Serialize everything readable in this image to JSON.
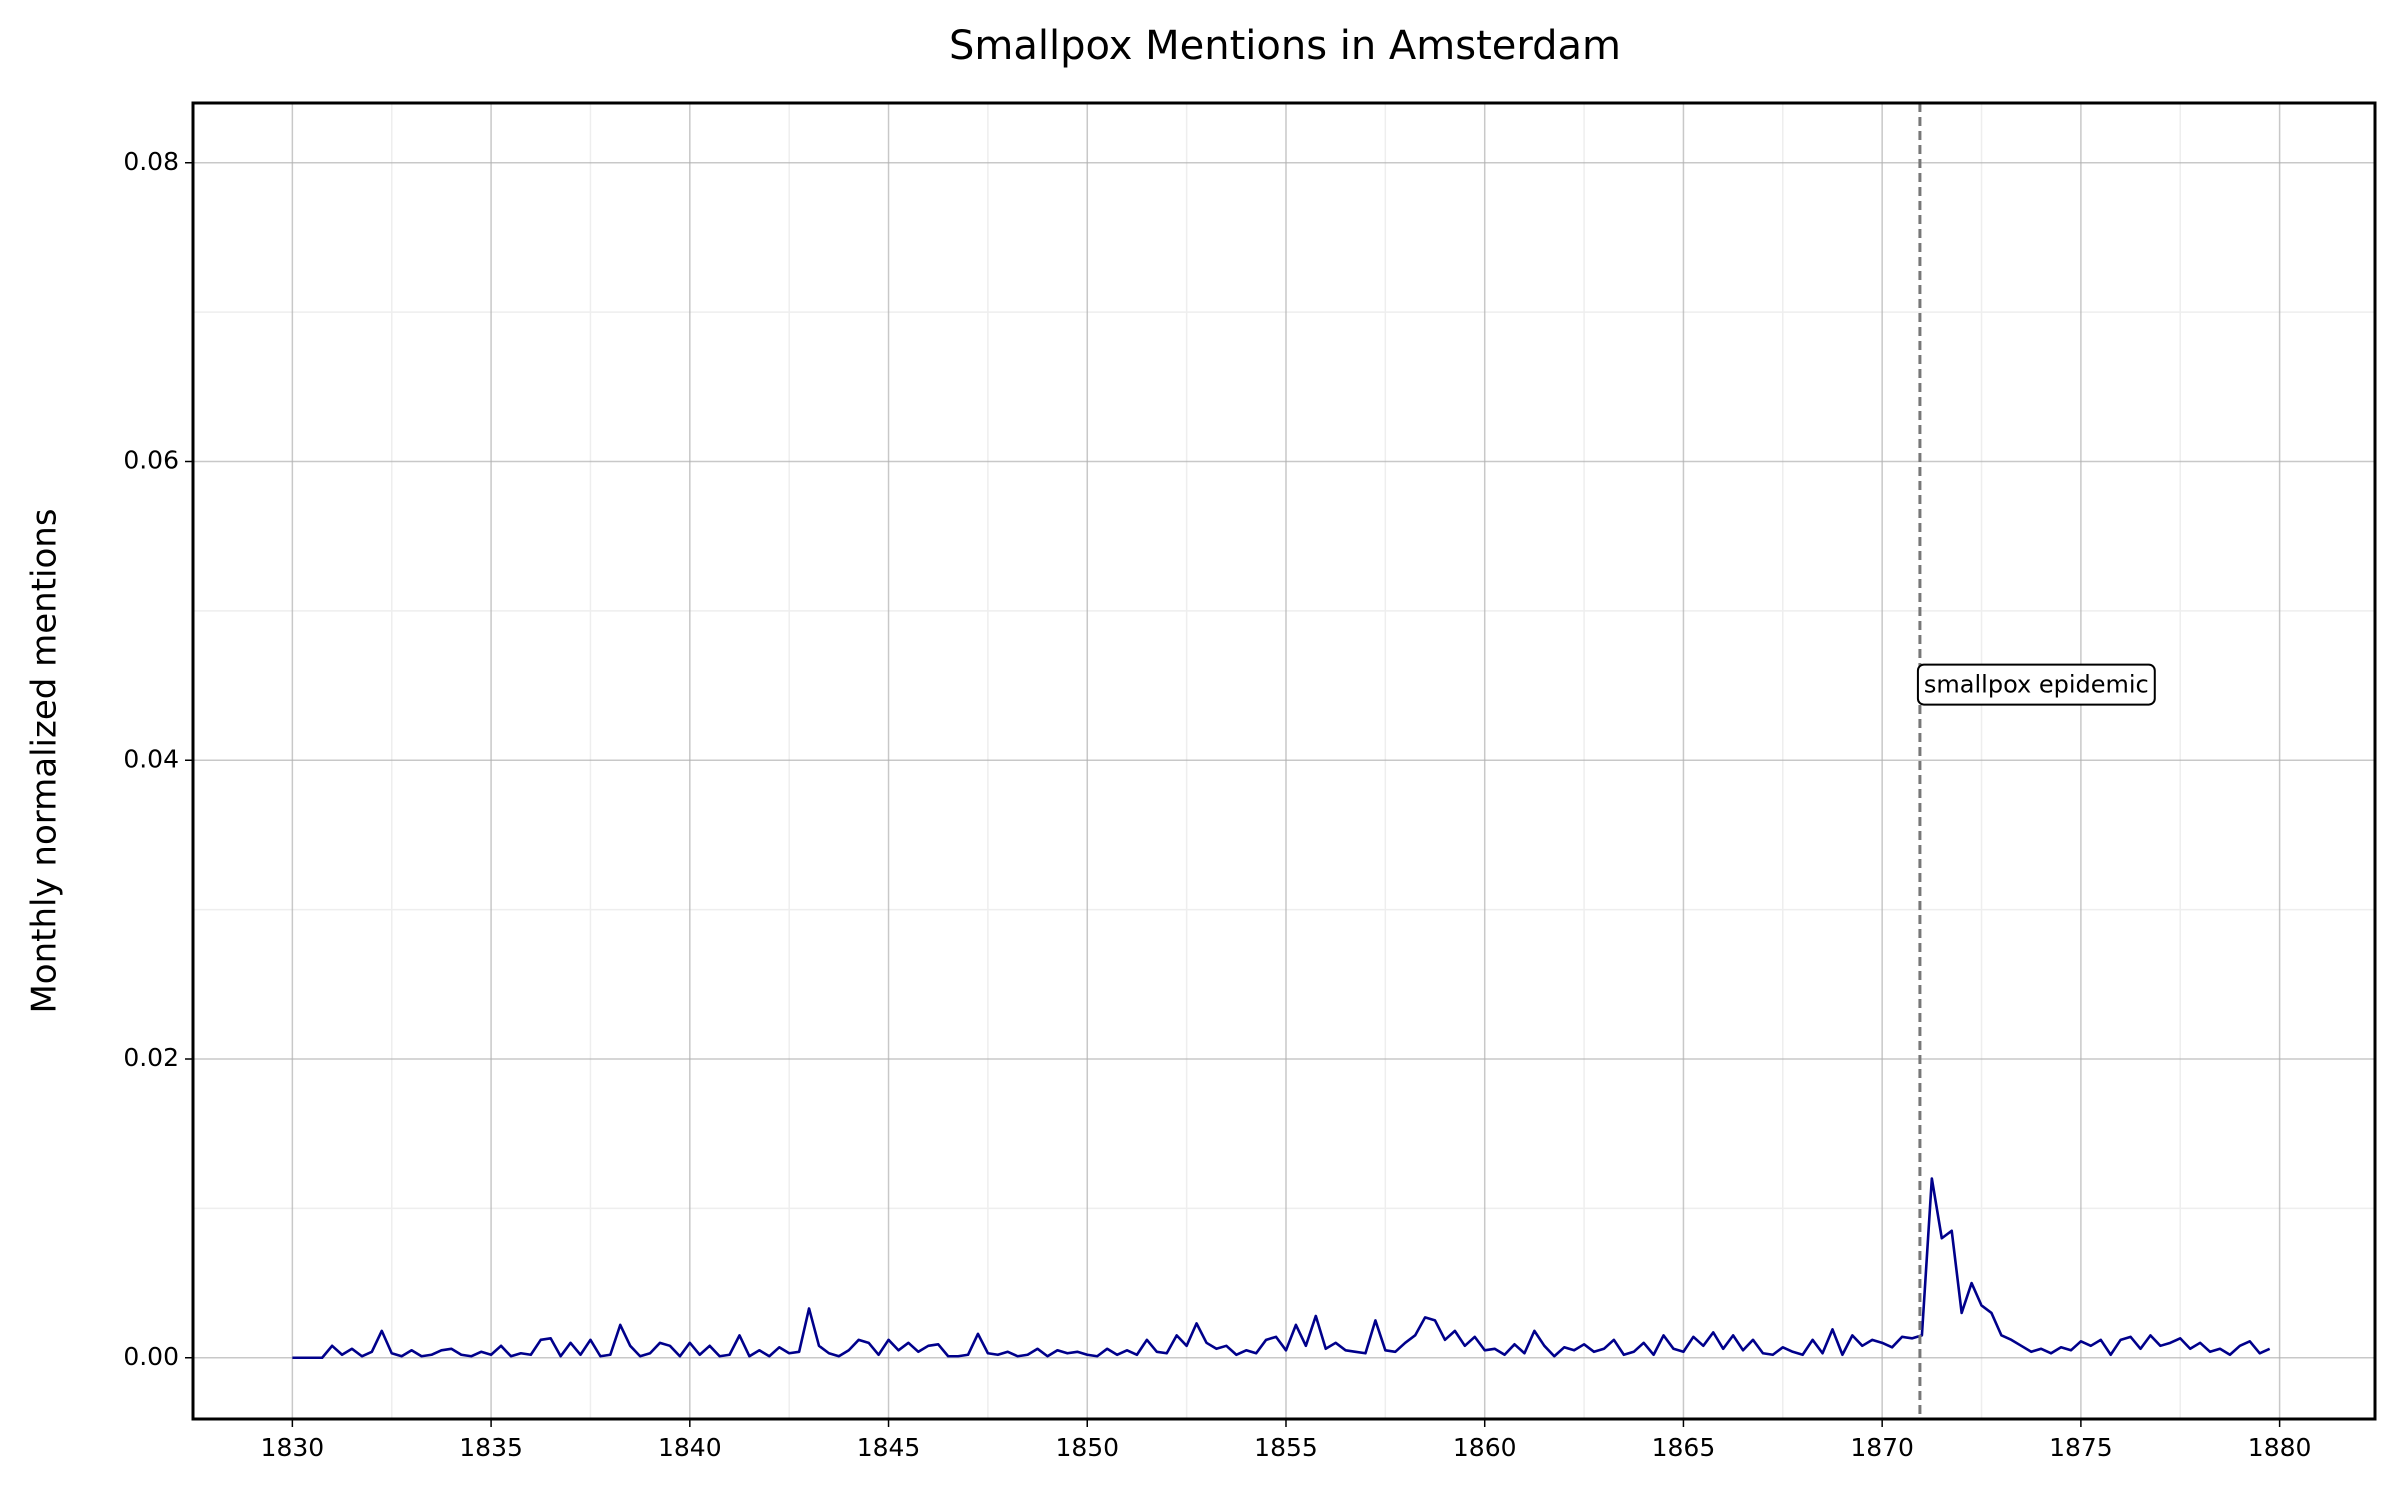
{
  "chart_data": {
    "type": "line",
    "title": "Smallpox Mentions in Amsterdam",
    "y_label": "Monthly normalized mentions",
    "color": "#00008b",
    "x": [
      1830,
      1830.25,
      1830.5,
      1830.75,
      1831,
      1831.25,
      1831.5,
      1831.75,
      1832,
      1832.25,
      1832.5,
      1832.75,
      1833,
      1833.25,
      1833.5,
      1833.75,
      1834,
      1834.25,
      1834.5,
      1834.75,
      1835,
      1835.25,
      1835.5,
      1835.75,
      1836,
      1836.25,
      1836.5,
      1836.75,
      1837,
      1837.25,
      1837.5,
      1837.75,
      1838,
      1838.25,
      1838.5,
      1838.75,
      1839,
      1839.25,
      1839.5,
      1839.75,
      1840,
      1840.25,
      1840.5,
      1840.75,
      1841,
      1841.25,
      1841.5,
      1841.75,
      1842,
      1842.25,
      1842.5,
      1842.75,
      1843,
      1843.25,
      1843.5,
      1843.75,
      1844,
      1844.25,
      1844.5,
      1844.75,
      1845,
      1845.25,
      1845.5,
      1845.75,
      1846,
      1846.25,
      1846.5,
      1846.75,
      1847,
      1847.25,
      1847.5,
      1847.75,
      1848,
      1848.25,
      1848.5,
      1848.75,
      1849,
      1849.25,
      1849.5,
      1849.75,
      1850,
      1850.25,
      1850.5,
      1850.75,
      1851,
      1851.25,
      1851.5,
      1851.75,
      1852,
      1852.25,
      1852.5,
      1852.75,
      1853,
      1853.25,
      1853.5,
      1853.75,
      1854,
      1854.25,
      1854.5,
      1854.75,
      1855,
      1855.25,
      1855.5,
      1855.75,
      1856,
      1856.25,
      1856.5,
      1856.75,
      1857,
      1857.25,
      1857.5,
      1857.75,
      1858,
      1858.25,
      1858.5,
      1858.75,
      1859,
      1859.25,
      1859.5,
      1859.75,
      1860,
      1860.25,
      1860.5,
      1860.75,
      1861,
      1861.25,
      1861.5,
      1861.75,
      1862,
      1862.25,
      1862.5,
      1862.75,
      1863,
      1863.25,
      1863.5,
      1863.75,
      1864,
      1864.25,
      1864.5,
      1864.75,
      1865,
      1865.25,
      1865.5,
      1865.75,
      1866,
      1866.25,
      1866.5,
      1866.75,
      1867,
      1867.25,
      1867.5,
      1867.75,
      1868,
      1868.25,
      1868.5,
      1868.75,
      1869,
      1869.25,
      1869.5,
      1869.75,
      1870,
      1870.25,
      1870.5,
      1870.75,
      1871,
      1871.25,
      1871.5,
      1871.75,
      1872,
      1872.25,
      1872.5,
      1872.75,
      1873,
      1873.25,
      1873.5,
      1873.75,
      1874,
      1874.25,
      1874.5,
      1874.75,
      1875,
      1875.25,
      1875.5,
      1875.75,
      1876,
      1876.25,
      1876.5,
      1876.75,
      1877,
      1877.25,
      1877.5,
      1877.75,
      1878,
      1878.25,
      1878.5,
      1878.75,
      1879,
      1879.25,
      1879.5,
      1879.75
    ],
    "values": [
      0,
      0,
      0,
      0,
      0.0008,
      0.0002,
      0.0006,
      0.0001,
      0.0004,
      0.0018,
      0.0003,
      0.0001,
      0.0005,
      0.0001,
      0.0002,
      0.0005,
      0.0006,
      0.0002,
      0.0001,
      0.0004,
      0.0002,
      0.0008,
      0.0001,
      0.0003,
      0.0002,
      0.0012,
      0.0013,
      0.0001,
      0.001,
      0.0002,
      0.0012,
      0.0001,
      0.0002,
      0.0022,
      0.0008,
      0.0001,
      0.0003,
      0.001,
      0.0008,
      0.0001,
      0.001,
      0.0002,
      0.0008,
      0.0001,
      0.0002,
      0.0015,
      0.0001,
      0.0005,
      0.0001,
      0.0007,
      0.0003,
      0.0004,
      0.0033,
      0.0008,
      0.0003,
      0.0001,
      0.0005,
      0.0012,
      0.001,
      0.0002,
      0.0012,
      0.0005,
      0.001,
      0.0004,
      0.0008,
      0.0009,
      0.0001,
      0.0001,
      0.0002,
      0.0016,
      0.0003,
      0.0002,
      0.0004,
      0.0001,
      0.0002,
      0.0006,
      0.0001,
      0.0005,
      0.0003,
      0.0004,
      0.0002,
      0.0001,
      0.0006,
      0.0002,
      0.0005,
      0.0002,
      0.0012,
      0.0004,
      0.0003,
      0.0015,
      0.0008,
      0.0023,
      0.001,
      0.0006,
      0.0008,
      0.0002,
      0.0005,
      0.0003,
      0.0012,
      0.0014,
      0.0005,
      0.0022,
      0.0008,
      0.0028,
      0.0006,
      0.001,
      0.0005,
      0.0004,
      0.0003,
      0.0025,
      0.0005,
      0.0004,
      0.001,
      0.0015,
      0.0027,
      0.0025,
      0.0012,
      0.0018,
      0.0008,
      0.0014,
      0.0005,
      0.0006,
      0.0002,
      0.0009,
      0.0003,
      0.0018,
      0.0008,
      0.0001,
      0.0007,
      0.0005,
      0.0009,
      0.0004,
      0.0006,
      0.0012,
      0.0002,
      0.0004,
      0.001,
      0.0002,
      0.0015,
      0.0006,
      0.0004,
      0.0014,
      0.0008,
      0.0017,
      0.0006,
      0.0015,
      0.0005,
      0.0012,
      0.0003,
      0.0002,
      0.0007,
      0.0004,
      0.0002,
      0.0012,
      0.0003,
      0.0019,
      0.0002,
      0.0015,
      0.0008,
      0.0012,
      0.001,
      0.0007,
      0.0014,
      0.0013,
      0.0015,
      0.012,
      0.008,
      0.0085,
      0.003,
      0.005,
      0.0035,
      0.003,
      0.0015,
      0.0012,
      0.0008,
      0.0004,
      0.0006,
      0.0003,
      0.0007,
      0.0005,
      0.0011,
      0.0008,
      0.0012,
      0.0002,
      0.0012,
      0.0014,
      0.0006,
      0.0015,
      0.0008,
      0.001,
      0.0013,
      0.0006,
      0.001,
      0.0004,
      0.0006,
      0.0002,
      0.0008,
      0.0011,
      0.0003,
      0.0006
    ],
    "xlim": [
      1827.5,
      1882.4
    ],
    "ylim": [
      -0.0041,
      0.084
    ],
    "xticks": [
      1830,
      1835,
      1840,
      1845,
      1850,
      1855,
      1860,
      1865,
      1870,
      1875,
      1880
    ],
    "yticks": [
      {
        "value": 0,
        "label": "0.00"
      },
      {
        "value": 0.02,
        "label": "0.02"
      },
      {
        "value": 0.04,
        "label": "0.04"
      },
      {
        "value": 0.06,
        "label": "0.06"
      },
      {
        "value": 0.08,
        "label": "0.08"
      }
    ],
    "grid": true,
    "minor_grid": true,
    "annotations": [
      {
        "x": 1870.95,
        "y": 0.045,
        "text": "smallpox epidemic"
      }
    ]
  }
}
